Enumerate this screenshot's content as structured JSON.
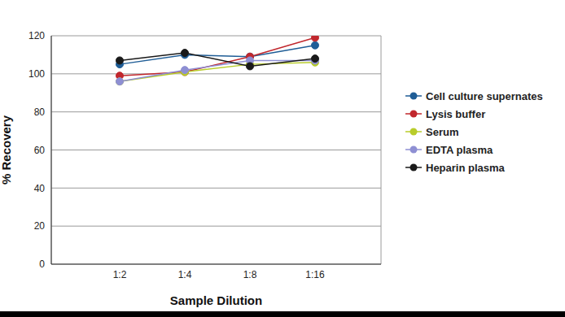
{
  "chart_data": {
    "type": "line",
    "x_label": "Sample Dilution",
    "y_label": "% Recovery",
    "categories": [
      "1:2",
      "1:4",
      "1:8",
      "1:16"
    ],
    "series": [
      {
        "name": "Cell culture supernates",
        "color": "#1f5d96",
        "values": [
          105,
          110,
          109,
          115
        ]
      },
      {
        "name": "Lysis buffer",
        "color": "#c1272d",
        "values": [
          99,
          101,
          109,
          119
        ]
      },
      {
        "name": "Serum",
        "color": "#b8cc2a",
        "values": [
          96,
          101,
          105,
          106
        ]
      },
      {
        "name": "EDTA plasma",
        "color": "#8e8fd3",
        "values": [
          96,
          102,
          107,
          107
        ]
      },
      {
        "name": "Heparin plasma",
        "color": "#1a1a1a",
        "values": [
          107,
          111,
          104,
          108
        ]
      }
    ],
    "ylim": [
      0,
      120
    ],
    "yticks": [
      0,
      20,
      40,
      60,
      80,
      100,
      120
    ],
    "grid": true,
    "legend": "right",
    "marker": "circle"
  }
}
